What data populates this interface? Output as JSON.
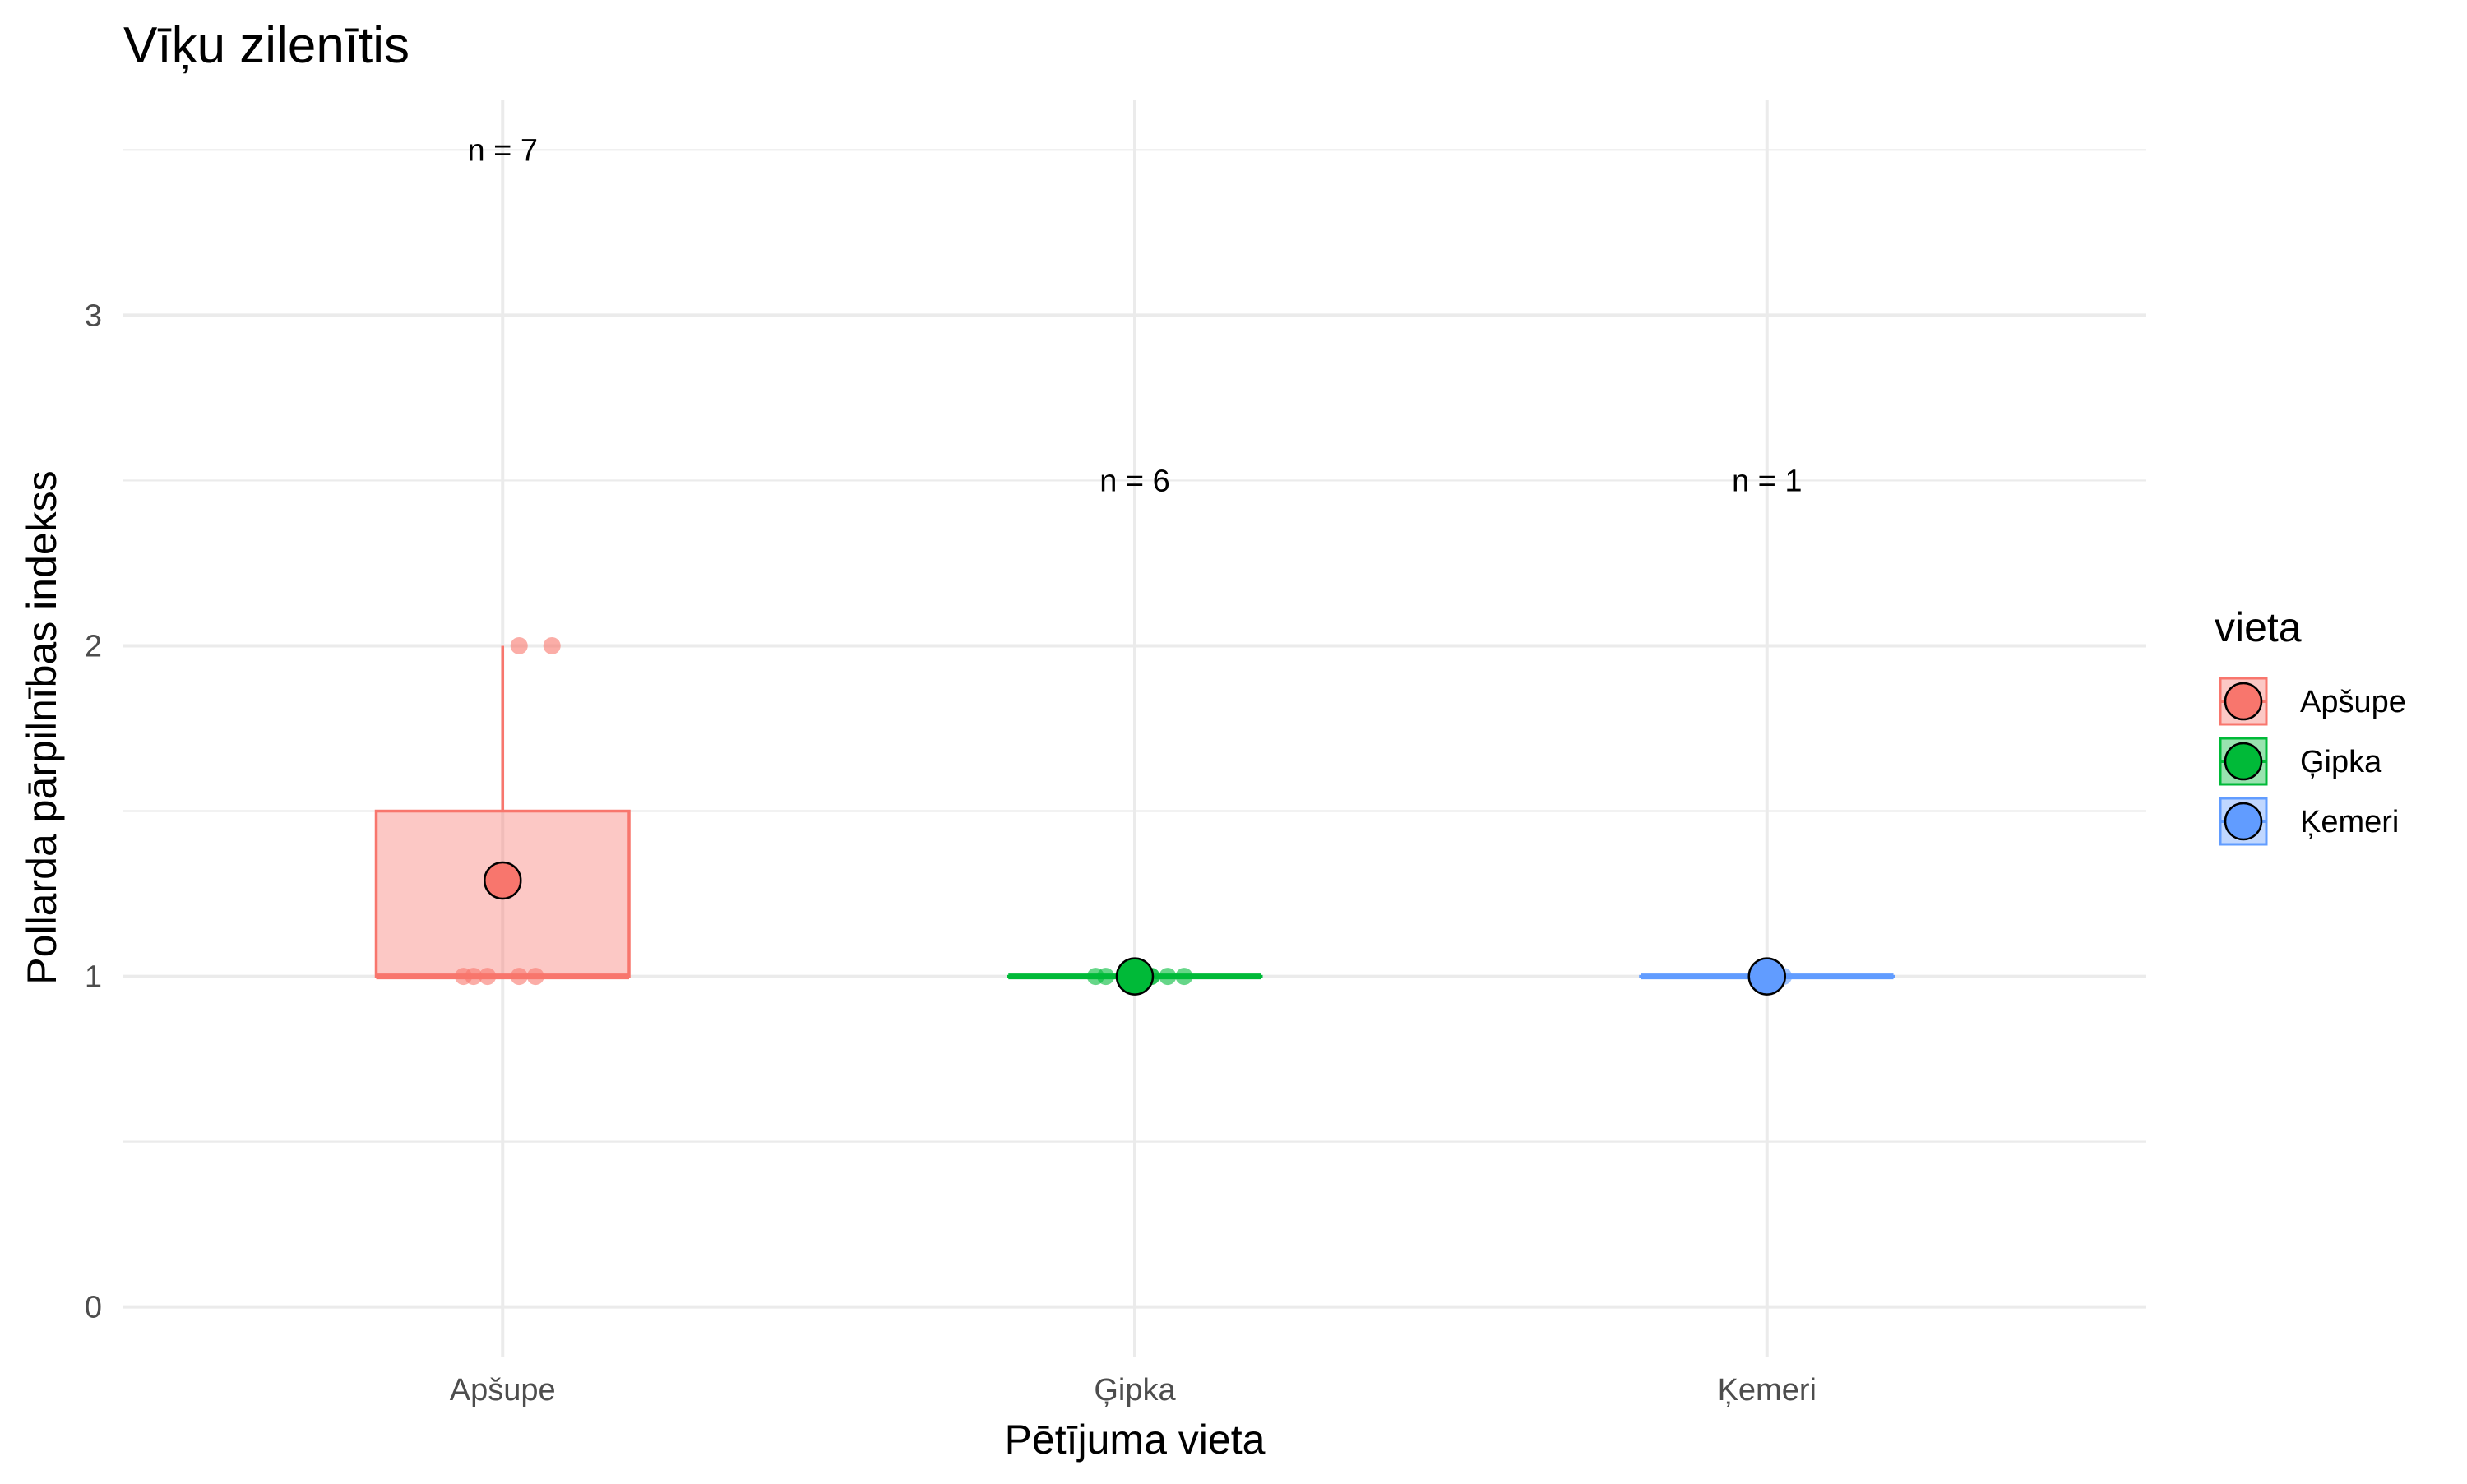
{
  "chart_data": {
    "type": "box",
    "title": "Vīķu zilenītis",
    "xlabel": "Pētījuma vieta",
    "ylabel": "Pollarda pārpilnības indekss",
    "ylim": [
      -0.15,
      3.65
    ],
    "yticks": [
      0,
      1,
      2,
      3
    ],
    "grid": true,
    "legend": {
      "title": "vieta",
      "position": "right"
    },
    "categories": [
      "Apšupe",
      "Ģipka",
      "Ķemeri"
    ],
    "colors": {
      "Apšupe": "#f8766d",
      "Ģipka": "#00ba38",
      "Ķemeri": "#619cff"
    },
    "boxes": [
      {
        "category": "Apšupe",
        "q1": 1,
        "median": 1,
        "q3": 1.5,
        "whisker_low": 1,
        "whisker_high": 2,
        "mean": 1.29,
        "n_label": "n = 7",
        "n_label_y": 3.5
      },
      {
        "category": "Ģipka",
        "q1": 1,
        "median": 1,
        "q3": 1,
        "whisker_low": 1,
        "whisker_high": 1,
        "mean": 1,
        "n_label": "n = 6",
        "n_label_y": 2.5
      },
      {
        "category": "Ķemeri",
        "q1": 1,
        "median": 1,
        "q3": 1,
        "whisker_low": 1,
        "whisker_high": 1,
        "mean": 1,
        "n_label": "n = 1",
        "n_label_y": 2.5
      }
    ],
    "points": [
      {
        "category": "Apšupe",
        "values": [
          2,
          2,
          1,
          1,
          1,
          1,
          1
        ]
      },
      {
        "category": "Ģipka",
        "values": [
          1,
          1,
          1,
          1,
          1,
          1
        ]
      },
      {
        "category": "Ķemeri",
        "values": [
          1
        ]
      }
    ]
  }
}
